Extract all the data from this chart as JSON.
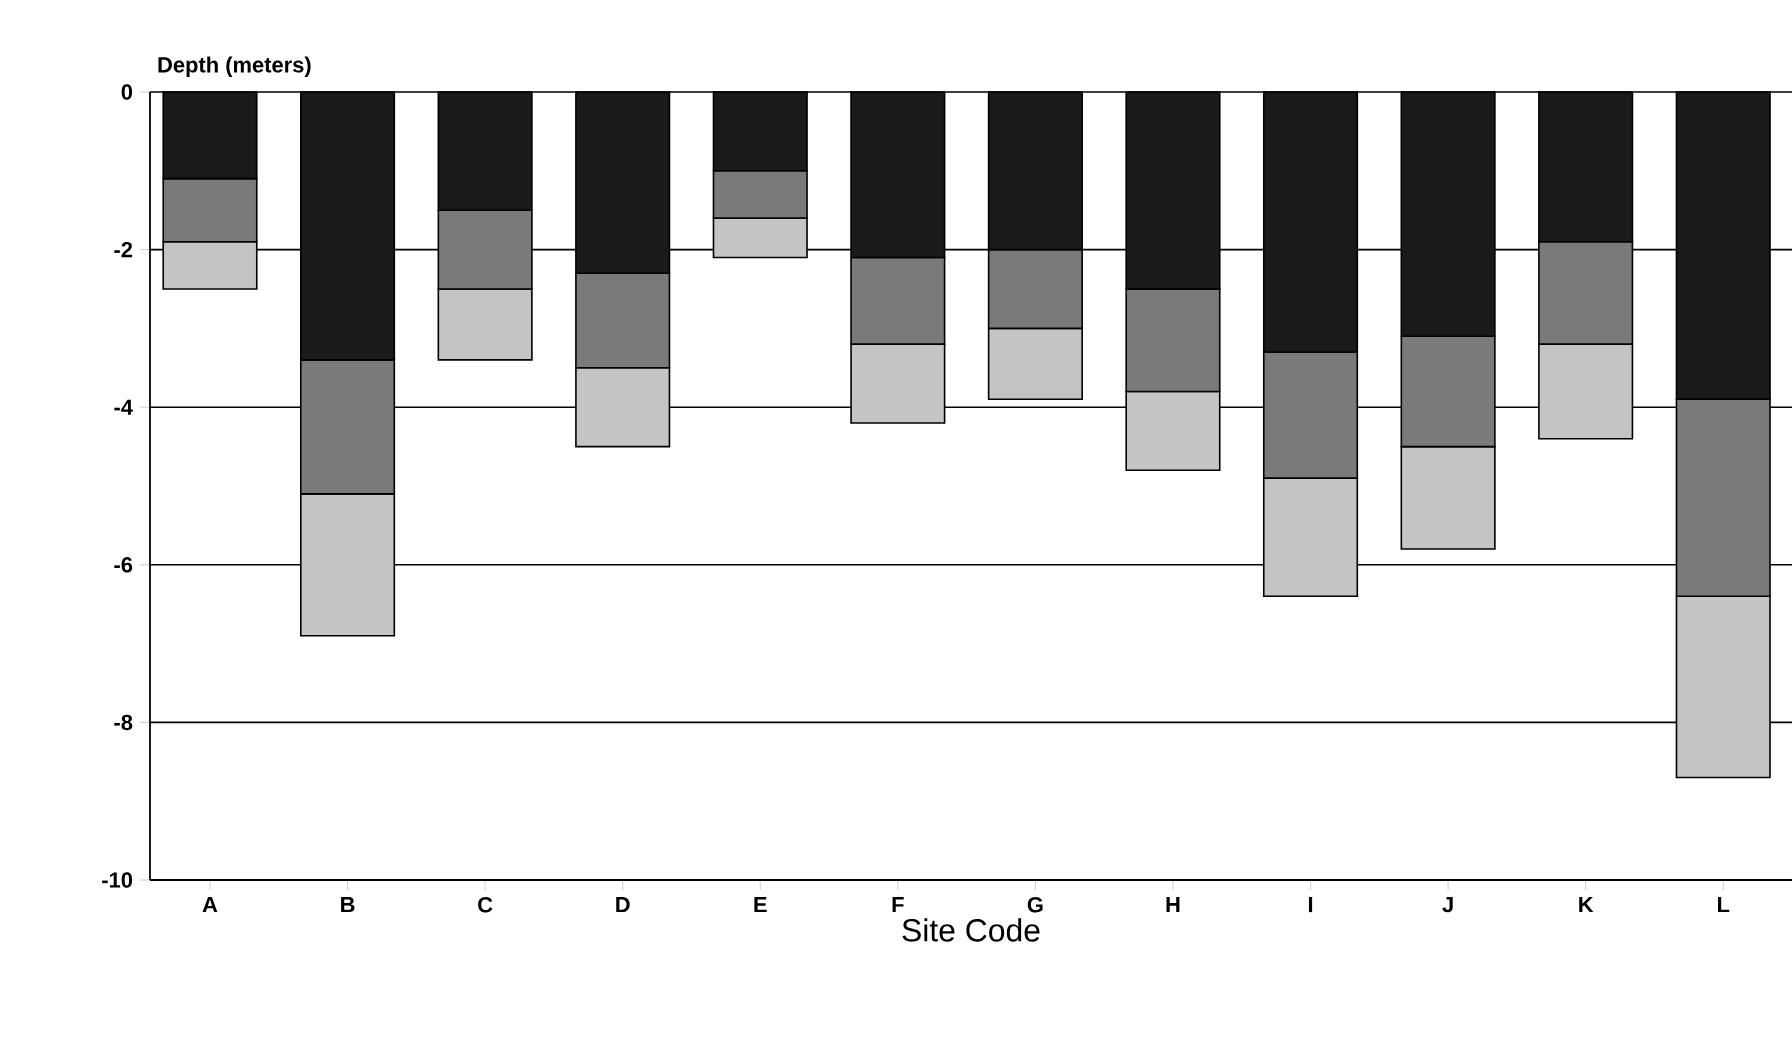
{
  "chart_data": {
    "type": "bar",
    "stacked": true,
    "xlabel": "Site Code",
    "ylabel": "Depth (meters)",
    "categories": [
      "A",
      "B",
      "C",
      "D",
      "E",
      "F",
      "G",
      "H",
      "I",
      "J",
      "K",
      "L"
    ],
    "series": [
      {
        "color": "#1a1a1a",
        "values": [
          -1.1,
          -3.4,
          -1.5,
          -2.3,
          -1.0,
          -2.1,
          -2.0,
          -2.5,
          -3.3,
          -3.1,
          -1.9,
          -3.9
        ]
      },
      {
        "color": "#7a7a7a",
        "values": [
          -0.8,
          -1.7,
          -1.0,
          -1.2,
          -0.6,
          -1.1,
          -1.0,
          -1.3,
          -1.6,
          -1.4,
          -1.3,
          -2.5
        ]
      },
      {
        "color": "#c4c4c4",
        "values": [
          -0.6,
          -1.8,
          -0.9,
          -1.0,
          -0.5,
          -1.0,
          -0.9,
          -1.0,
          -1.5,
          -1.3,
          -1.2,
          -2.3
        ]
      }
    ],
    "ylim": [
      -10,
      0
    ],
    "yticks": [
      -10,
      -8,
      -6,
      -4,
      -2,
      0
    ],
    "grid": "y"
  }
}
